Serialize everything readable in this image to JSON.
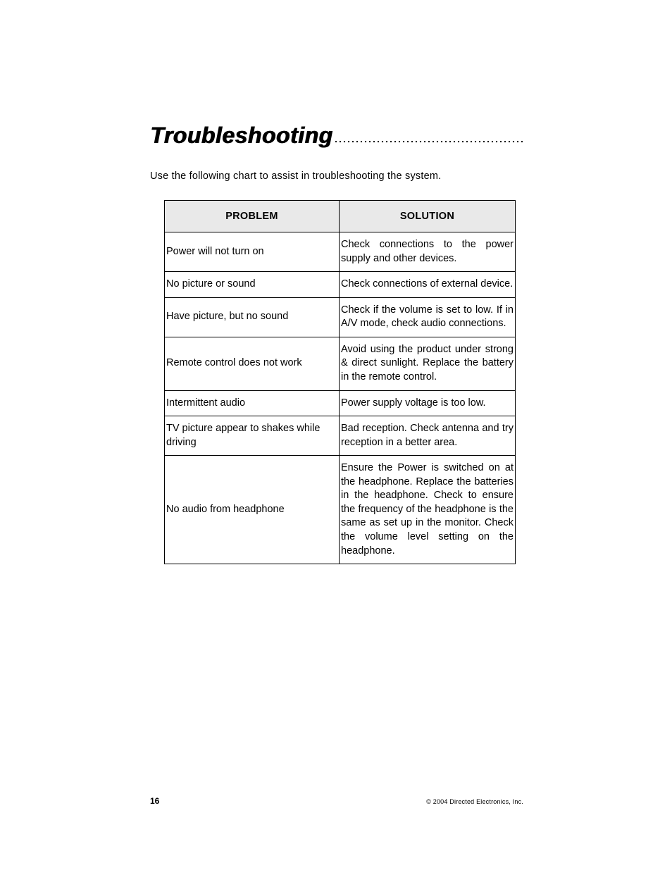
{
  "heading": "Troubleshooting",
  "intro": "Use the following chart to assist in troubleshooting the system.",
  "table": {
    "headers": {
      "problem": "PROBLEM",
      "solution": "SOLUTION"
    },
    "rows": [
      {
        "problem": "Power will not turn on",
        "solution": "Check connections to the power supply and other devices."
      },
      {
        "problem": "No picture or sound",
        "solution": "Check connections of external device."
      },
      {
        "problem": "Have picture, but no sound",
        "solution": "Check if the volume is set to low. If in A/V mode, check audio connections."
      },
      {
        "problem": "Remote control does not work",
        "solution": "Avoid using the product under strong & direct sunlight. Replace the battery in the remote control."
      },
      {
        "problem": "Intermittent audio",
        "solution": "Power supply voltage is too low."
      },
      {
        "problem": "TV picture appear to shakes while driving",
        "solution": "Bad reception. Check antenna and try reception in a better area."
      },
      {
        "problem": "No audio from headphone",
        "solution": "Ensure the Power is switched on at the headphone. Replace the batteries in the headphone. Check to ensure the frequency of the headphone is the same as set up in the monitor. Check the volume level setting on the headphone."
      }
    ]
  },
  "footer": {
    "page_number": "16",
    "copyright": "© 2004 Directed Electronics, Inc."
  }
}
